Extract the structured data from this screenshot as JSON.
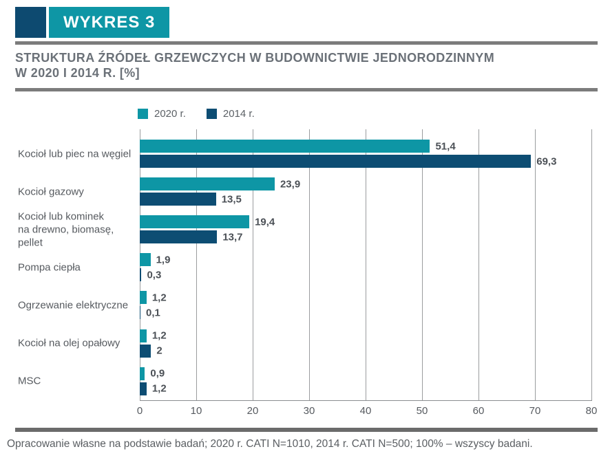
{
  "header": {
    "badge_label": "WYKRES 3",
    "accent_square_color": "#0D4A70",
    "badge_color": "#0E96A5"
  },
  "title": {
    "line1": "STRUKTURA ŹRÓDEŁ GRZEWCZYCH W BUDOWNICTWIE JEDNORODZINNYM",
    "line2": "W 2020 I 2014 R. [%]"
  },
  "legend": [
    {
      "label": "2020 r.",
      "color": "#0E96A5"
    },
    {
      "label": "2014 r.",
      "color": "#0D4D73"
    }
  ],
  "chart_data": {
    "type": "bar",
    "orientation": "horizontal",
    "title": "STRUKTURA ŹRÓDEŁ GRZEWCZYCH W BUDOWNICTWIE JEDNORODZINNYM W 2020 I 2014 R. [%]",
    "categories": [
      "Kocioł lub piec na węgiel",
      "Kocioł gazowy",
      "Kocioł lub kominek\nna drewno, biomasę, pellet",
      "Pompa ciepła",
      "Ogrzewanie elektryczne",
      "Kocioł na olej opałowy",
      "MSC"
    ],
    "series": [
      {
        "name": "2020 r.",
        "color": "#0E96A5",
        "values": [
          51.4,
          23.9,
          19.4,
          1.9,
          1.2,
          1.2,
          0.9
        ],
        "labels": [
          "51,4",
          "23,9",
          "19,4",
          "1,9",
          "1,2",
          "1,2",
          "0,9"
        ]
      },
      {
        "name": "2014 r.",
        "color": "#0D4D73",
        "values": [
          69.3,
          13.5,
          13.7,
          0.3,
          0.1,
          2,
          1.2
        ],
        "labels": [
          "69,3",
          "13,5",
          "13,7",
          "0,3",
          "0,1",
          "2",
          "1,2"
        ]
      }
    ],
    "x_ticks": [
      0,
      10,
      20,
      30,
      40,
      50,
      60,
      70,
      80
    ],
    "xlim": [
      0,
      80
    ],
    "grid": true,
    "legend_position": "top"
  },
  "footer": {
    "note": "Opracowanie własne na podstawie badań; 2020 r. CATI N=1010, 2014 r. CATI N=500; 100% – wszyscy badani."
  }
}
